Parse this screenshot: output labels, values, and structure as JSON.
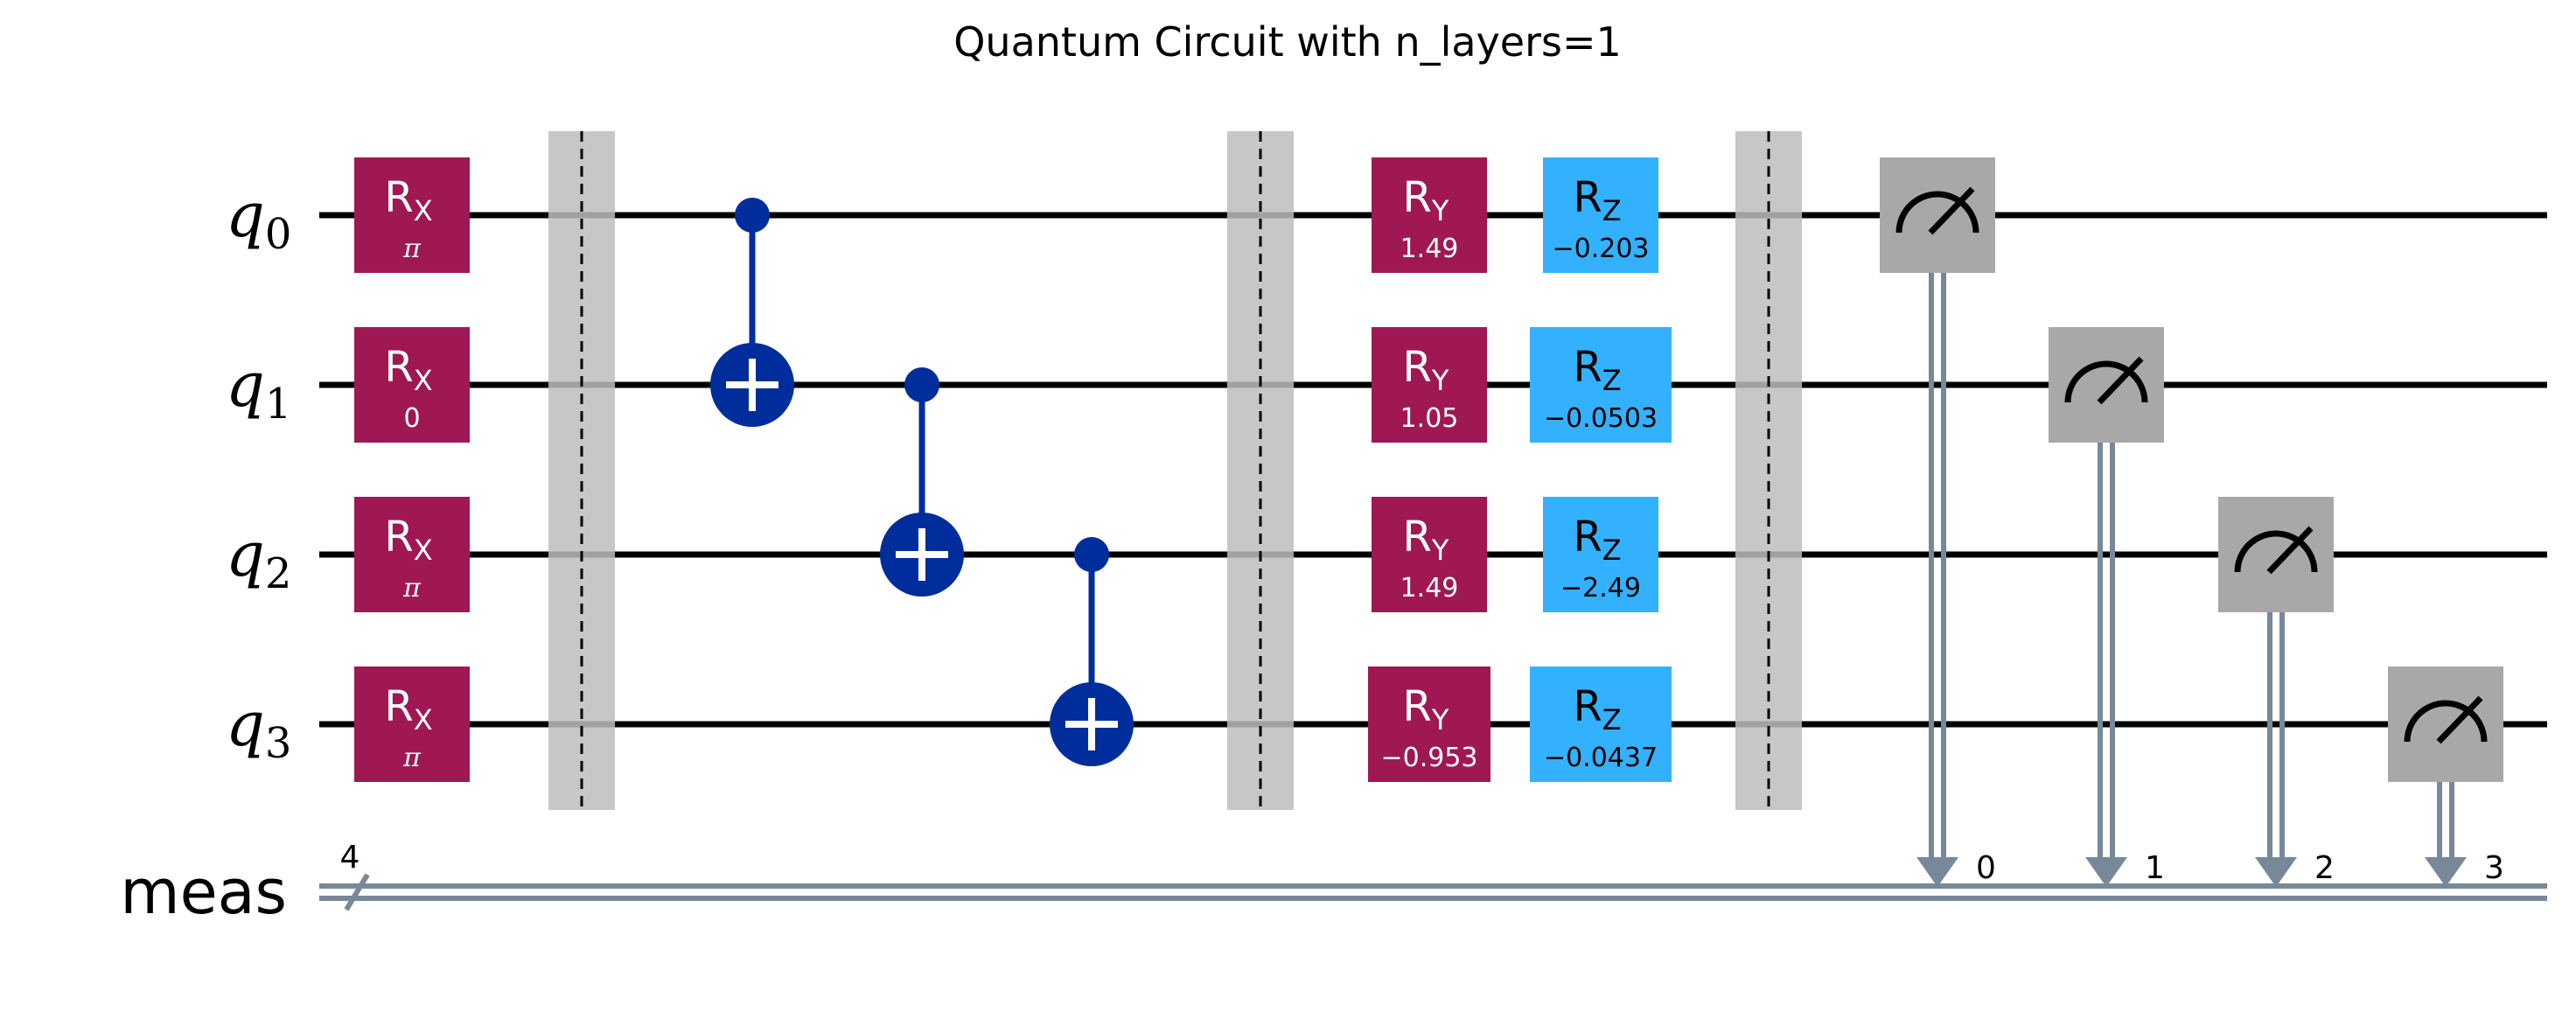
{
  "title": "Quantum Circuit with n_layers=1",
  "qubits": [
    {
      "label": "q",
      "index": "0"
    },
    {
      "label": "q",
      "index": "1"
    },
    {
      "label": "q",
      "index": "2"
    },
    {
      "label": "q",
      "index": "3"
    }
  ],
  "classical_register": {
    "label": "meas",
    "width": "4"
  },
  "colors": {
    "rx_ry": "#9f1853",
    "rz": "#33b1ff",
    "cnot": "#002d9c",
    "barrier": "#bdbdbd",
    "measure": "#a8a8a8",
    "classical_wire": "#778899"
  },
  "layer1_rx": [
    {
      "qubit": 0,
      "name": "R",
      "sub": "X",
      "param": "π"
    },
    {
      "qubit": 1,
      "name": "R",
      "sub": "X",
      "param": "0"
    },
    {
      "qubit": 2,
      "name": "R",
      "sub": "X",
      "param": "π"
    },
    {
      "qubit": 3,
      "name": "R",
      "sub": "X",
      "param": "π"
    }
  ],
  "cnots": [
    {
      "control": 0,
      "target": 1
    },
    {
      "control": 1,
      "target": 2
    },
    {
      "control": 2,
      "target": 3
    }
  ],
  "ry_gates": [
    {
      "qubit": 0,
      "name": "R",
      "sub": "Y",
      "param": "1.49"
    },
    {
      "qubit": 1,
      "name": "R",
      "sub": "Y",
      "param": "1.05"
    },
    {
      "qubit": 2,
      "name": "R",
      "sub": "Y",
      "param": "1.49"
    },
    {
      "qubit": 3,
      "name": "R",
      "sub": "Y",
      "param": "−0.953"
    }
  ],
  "rz_gates": [
    {
      "qubit": 0,
      "name": "R",
      "sub": "Z",
      "param": "−0.203"
    },
    {
      "qubit": 1,
      "name": "R",
      "sub": "Z",
      "param": "−0.0503"
    },
    {
      "qubit": 2,
      "name": "R",
      "sub": "Z",
      "param": "−2.49"
    },
    {
      "qubit": 3,
      "name": "R",
      "sub": "Z",
      "param": "−0.0437"
    }
  ],
  "measurements": [
    {
      "qubit": 0,
      "clbit": "0"
    },
    {
      "qubit": 1,
      "clbit": "1"
    },
    {
      "qubit": 2,
      "clbit": "2"
    },
    {
      "qubit": 3,
      "clbit": "3"
    }
  ],
  "barriers": 3
}
